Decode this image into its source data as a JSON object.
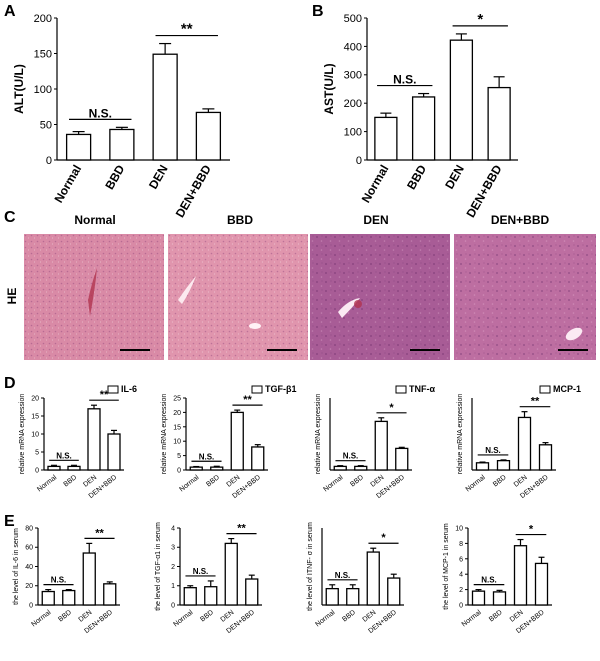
{
  "panels": {
    "A": "A",
    "B": "B",
    "C": "C",
    "D": "D",
    "E": "E"
  },
  "histology": {
    "row_label": "HE",
    "titles": [
      "Normal",
      "BBD",
      "DEN",
      "DEN+BBD"
    ],
    "colors": {
      "normal": "#d98aa6",
      "bbd": "#e095ad",
      "den": "#a85c96",
      "den_bbd": "#bd6ea1"
    }
  },
  "chart_data": [
    {
      "id": "A",
      "type": "bar",
      "panel": "A",
      "categories": [
        "Normal",
        "BBD",
        "DEN",
        "DEN+BBD"
      ],
      "values": [
        36,
        43,
        149,
        67
      ],
      "errors": [
        4,
        3,
        15,
        5
      ],
      "ylabel": "ALT(U/L)",
      "ylim": [
        0,
        200
      ],
      "yticks": [
        0,
        50,
        100,
        150,
        200
      ],
      "legend": "",
      "sig": [
        {
          "from": 0,
          "to": 1,
          "label": "N.S."
        },
        {
          "from": 2,
          "to": 3,
          "label": "**"
        }
      ]
    },
    {
      "id": "B",
      "type": "bar",
      "panel": "B",
      "categories": [
        "Normal",
        "BBD",
        "DEN",
        "DEN+BBD"
      ],
      "values": [
        150,
        222,
        422,
        255
      ],
      "errors": [
        15,
        12,
        22,
        38
      ],
      "ylabel": "AST(U/L)",
      "ylim": [
        0,
        500
      ],
      "yticks": [
        0,
        100,
        200,
        300,
        400,
        500
      ],
      "legend": "",
      "sig": [
        {
          "from": 0,
          "to": 1,
          "label": "N.S."
        },
        {
          "from": 2,
          "to": 3,
          "label": "*"
        }
      ]
    },
    {
      "id": "D1",
      "type": "bar",
      "panel": "D",
      "categories": [
        "Normal",
        "BBD",
        "DEN",
        "DEN+BBD"
      ],
      "values": [
        1,
        1,
        17,
        10
      ],
      "errors": [
        0.3,
        0.3,
        1,
        1
      ],
      "ylabel": "relative mRNA expression",
      "ylim": [
        0,
        20
      ],
      "yticks": [
        0,
        5,
        10,
        15,
        20
      ],
      "legend": "IL-6",
      "sig": [
        {
          "from": 0,
          "to": 1,
          "label": "N.S."
        },
        {
          "from": 2,
          "to": 3,
          "label": "**"
        }
      ]
    },
    {
      "id": "D2",
      "type": "bar",
      "panel": "D",
      "categories": [
        "Normal",
        "BBD",
        "DEN",
        "DEN+BBD"
      ],
      "values": [
        1,
        1,
        20,
        8
      ],
      "errors": [
        0.2,
        0.3,
        0.8,
        0.8
      ],
      "ylabel": "relative mRNA expression",
      "ylim": [
        0,
        25
      ],
      "yticks": [
        0,
        5,
        10,
        15,
        20,
        25
      ],
      "legend": "TGF-β1",
      "sig": [
        {
          "from": 0,
          "to": 1,
          "label": "N.S."
        },
        {
          "from": 2,
          "to": 3,
          "label": "**"
        }
      ]
    },
    {
      "id": "D3",
      "type": "bar",
      "panel": "D",
      "categories": [
        "Normal",
        "BBD",
        "DEN",
        "DEN+BBD"
      ],
      "values": [
        1,
        1,
        13.5,
        6
      ],
      "errors": [
        0.2,
        0.2,
        1,
        0.3
      ],
      "ylabel": "relative mRNA expression",
      "ylim": [
        0,
        20
      ],
      "yticks": [],
      "legend": "TNF-α",
      "sig": [
        {
          "from": 0,
          "to": 1,
          "label": "N.S."
        },
        {
          "from": 2,
          "to": 3,
          "label": "*"
        }
      ]
    },
    {
      "id": "D4",
      "type": "bar",
      "panel": "D",
      "categories": [
        "Normal",
        "BBD",
        "DEN",
        "DEN+BBD"
      ],
      "values": [
        1,
        1.3,
        7.3,
        3.5
      ],
      "errors": [
        0.1,
        0.1,
        0.8,
        0.3
      ],
      "ylabel": "relative mRNA expression",
      "ylim": [
        0,
        10
      ],
      "yticks": [],
      "legend": "MCP-1",
      "sig": [
        {
          "from": 0,
          "to": 1,
          "label": "N.S."
        },
        {
          "from": 2,
          "to": 3,
          "label": "**"
        }
      ]
    },
    {
      "id": "E1",
      "type": "bar",
      "panel": "E",
      "categories": [
        "Normal",
        "BBD",
        "DEN",
        "DEN+BBD"
      ],
      "values": [
        14,
        15,
        54,
        22
      ],
      "errors": [
        2,
        1,
        10,
        2
      ],
      "ylabel": "the level of IL-6 in serum",
      "ylim": [
        0,
        80
      ],
      "yticks": [
        0,
        20,
        40,
        60,
        80
      ],
      "legend": "",
      "sig": [
        {
          "from": 0,
          "to": 1,
          "label": "N.S."
        },
        {
          "from": 2,
          "to": 3,
          "label": "**"
        }
      ]
    },
    {
      "id": "E2",
      "type": "bar",
      "panel": "E",
      "categories": [
        "Normal",
        "BBD",
        "DEN",
        "DEN+BBD"
      ],
      "values": [
        0.9,
        0.95,
        3.2,
        1.35
      ],
      "errors": [
        0.1,
        0.3,
        0.25,
        0.2
      ],
      "ylabel": "the level of TGF-ɑ1 in serum",
      "ylim": [
        0,
        4
      ],
      "yticks": [
        0,
        1,
        2,
        3,
        4
      ],
      "legend": "",
      "sig": [
        {
          "from": 0,
          "to": 1,
          "label": "N.S."
        },
        {
          "from": 2,
          "to": 3,
          "label": "**"
        }
      ]
    },
    {
      "id": "E3",
      "type": "bar",
      "panel": "E",
      "categories": [
        "Normal",
        "BBD",
        "DEN",
        "DEN+BBD"
      ],
      "values": [
        0.85,
        0.85,
        2.75,
        1.4
      ],
      "errors": [
        0.2,
        0.2,
        0.2,
        0.2
      ],
      "ylabel": "the level of ITNF- σ in serum",
      "ylim": [
        0,
        4
      ],
      "yticks": [],
      "legend": "",
      "sig": [
        {
          "from": 0,
          "to": 1,
          "label": "N.S."
        },
        {
          "from": 2,
          "to": 3,
          "label": "*"
        }
      ]
    },
    {
      "id": "E4",
      "type": "bar",
      "panel": "E",
      "categories": [
        "Normal",
        "BBD",
        "DEN",
        "DEN+BBD"
      ],
      "values": [
        1.8,
        1.7,
        7.7,
        5.4
      ],
      "errors": [
        0.2,
        0.2,
        0.8,
        0.8
      ],
      "ylabel": "the level of MCP-1 in serum",
      "ylim": [
        0,
        10
      ],
      "yticks": [
        0,
        2,
        4,
        6,
        8,
        10
      ],
      "legend": "",
      "sig": [
        {
          "from": 0,
          "to": 1,
          "label": "N.S."
        },
        {
          "from": 2,
          "to": 3,
          "label": "*"
        }
      ]
    }
  ]
}
